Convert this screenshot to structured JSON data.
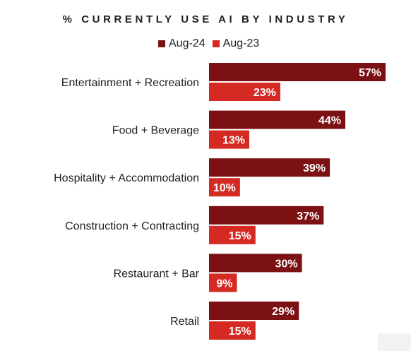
{
  "chart_data": {
    "type": "bar",
    "orientation": "horizontal",
    "title": "% CURRENTLY USE AI BY INDUSTRY",
    "categories": [
      "Entertainment + Recreation",
      "Food + Beverage",
      "Hospitality + Accommodation",
      "Construction + Contracting",
      "Restaurant + Bar",
      "Retail"
    ],
    "series": [
      {
        "name": "Aug-24",
        "color": "#7b1113",
        "values": [
          57,
          44,
          39,
          37,
          30,
          29
        ],
        "labels": [
          "57%",
          "44%",
          "39%",
          "37%",
          "30%",
          "29%"
        ]
      },
      {
        "name": "Aug-23",
        "color": "#d42a23",
        "values": [
          23,
          13,
          10,
          15,
          9,
          15
        ],
        "labels": [
          "23%",
          "13%",
          "10%",
          "15%",
          "9%",
          "15%"
        ]
      }
    ],
    "xlim": [
      0,
      57
    ],
    "legend_position": "top-center",
    "grid": false
  }
}
